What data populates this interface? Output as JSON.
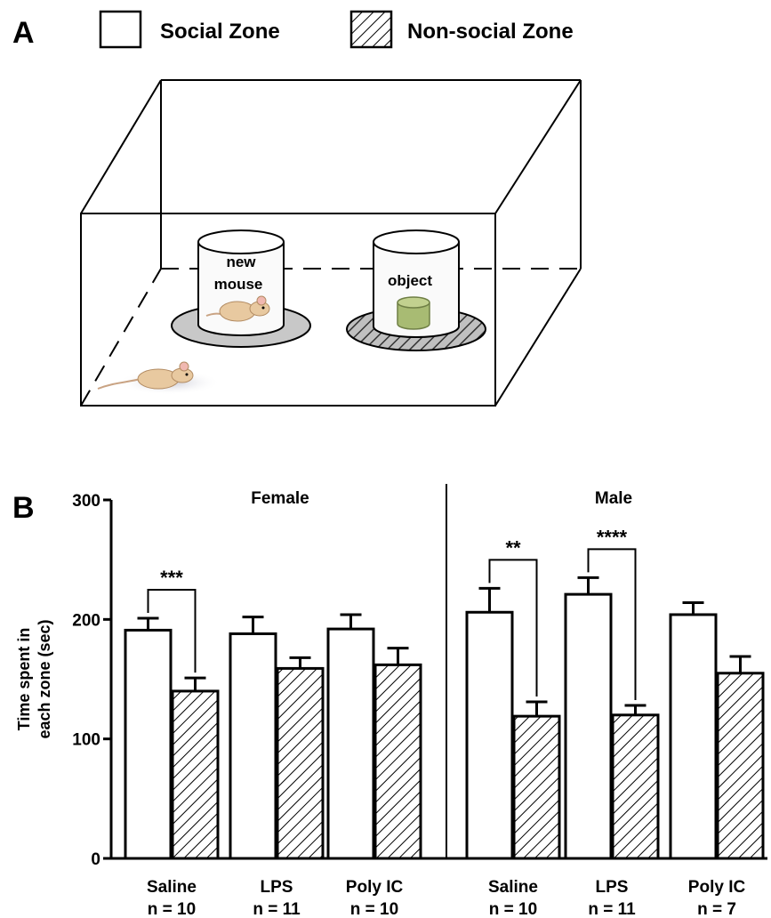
{
  "panel_a": {
    "letter": "A",
    "legend": [
      {
        "label": "Social Zone",
        "pattern": "empty"
      },
      {
        "label": "Non-social Zone",
        "pattern": "hatched"
      }
    ],
    "cylinder_left_label_line1": "new",
    "cylinder_left_label_line2": "mouse",
    "cylinder_right_label": "object",
    "colors": {
      "mouse_body": "#e8c9a0",
      "object": "#a8bb73",
      "zone_disc": "#c8c8c8"
    }
  },
  "panel_b": {
    "letter": "B"
  },
  "chart_data": {
    "type": "bar",
    "ylabel_line1": "Time spent in",
    "ylabel_line2": "each zone (sec)",
    "ylim": [
      0,
      300
    ],
    "yticks": [
      0,
      100,
      200,
      300
    ],
    "groups": [
      {
        "title": "Female",
        "categories": [
          {
            "name": "Saline",
            "n_label": "n = 10",
            "social": 191,
            "social_err": 10,
            "nonsocial": 140,
            "nonsocial_err": 11,
            "sig": "***"
          },
          {
            "name": "LPS",
            "n_label": "n = 11",
            "social": 188,
            "social_err": 14,
            "nonsocial": 159,
            "nonsocial_err": 9,
            "sig": ""
          },
          {
            "name": "Poly IC",
            "n_label": "n = 10",
            "social": 192,
            "social_err": 12,
            "nonsocial": 162,
            "nonsocial_err": 14,
            "sig": ""
          }
        ]
      },
      {
        "title": "Male",
        "categories": [
          {
            "name": "Saline",
            "n_label": "n = 10",
            "social": 206,
            "social_err": 20,
            "nonsocial": 119,
            "nonsocial_err": 12,
            "sig": "**"
          },
          {
            "name": "LPS",
            "n_label": "n = 11",
            "social": 221,
            "social_err": 14,
            "nonsocial": 120,
            "nonsocial_err": 8,
            "sig": "****"
          },
          {
            "name": "Poly IC",
            "n_label": "n = 7",
            "social": 204,
            "social_err": 10,
            "nonsocial": 155,
            "nonsocial_err": 14,
            "sig": ""
          }
        ]
      }
    ],
    "series": [
      {
        "name": "Social Zone",
        "pattern": "empty"
      },
      {
        "name": "Non-social Zone",
        "pattern": "hatched"
      }
    ],
    "grid": false
  }
}
